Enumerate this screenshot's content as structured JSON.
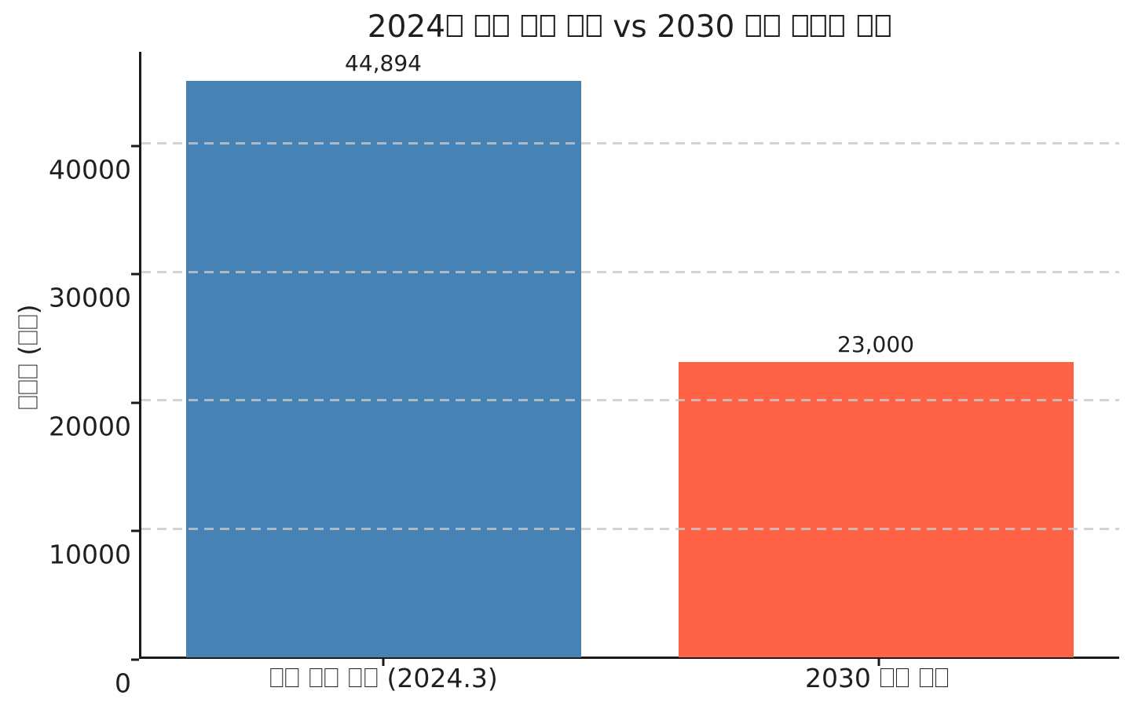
{
  "figure": {
    "background": "#ffffff",
    "text_color": "#1f1f1f",
    "spine_color": "#1a1a1a",
    "grid_color": "#cccccc"
  },
  "chart_data": {
    "type": "bar",
    "title": "2024□ □□ □□ □□ vs 2030 □□ □□□ □□",
    "categories": [
      "□□ □□ □□ (2024.3)",
      "2030 □□ □□"
    ],
    "values": [
      44894,
      23000
    ],
    "value_labels": [
      "44,894",
      "23,000"
    ],
    "bar_colors": [
      "#4682b4",
      "#ff6347"
    ],
    "xlabel": "",
    "ylabel": "□□□ (□□)",
    "yticks": [
      0,
      10000,
      20000,
      30000,
      40000
    ],
    "ytick_labels": [
      "0",
      "10000",
      "20000",
      "30000",
      "40000"
    ],
    "ylim": [
      0,
      47139
    ],
    "grid": "horizontal-dashed",
    "legend": "none"
  }
}
